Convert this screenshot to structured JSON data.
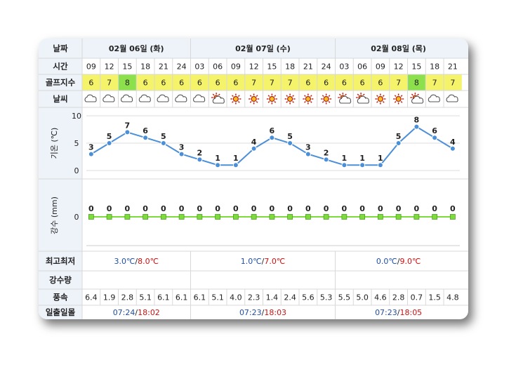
{
  "row_labels": {
    "date": "날짜",
    "time": "시간",
    "golf": "골프지수",
    "weather": "날씨",
    "temp_axis": "기온 (℃)",
    "rain_axis": "강수 (mm)",
    "minmax": "최고최저",
    "precip": "강수량",
    "wind": "풍속",
    "sun": "일출일몰"
  },
  "days": [
    {
      "label": "02월 06일 (화)",
      "min": "3.0℃",
      "max": "8.0℃",
      "sunrise": "07:24",
      "sunset": "18:02"
    },
    {
      "label": "02월 07일 (수)",
      "min": "1.0℃",
      "max": "7.0℃",
      "sunrise": "07:23",
      "sunset": "18:03"
    },
    {
      "label": "02월 08일 (목)",
      "min": "0.0℃",
      "max": "9.0℃",
      "sunrise": "07:23",
      "sunset": "18:05"
    }
  ],
  "separator": "/",
  "colors": {
    "header_bg": "#eef3fa",
    "golf_green": "#8ce04c",
    "golf_yellow": "#f4f36a",
    "line_blue": "#4a8fd8",
    "rain_green": "#7ddc3c",
    "grid": "#d8d8d8"
  },
  "chart_data": {
    "type": "line",
    "x": [
      "09",
      "12",
      "15",
      "18",
      "21",
      "24",
      "03",
      "06",
      "09",
      "12",
      "15",
      "18",
      "21",
      "24",
      "03",
      "06",
      "09",
      "12",
      "15",
      "18",
      "21"
    ],
    "golf_index": [
      6,
      7,
      8,
      6,
      6,
      6,
      6,
      6,
      6,
      7,
      7,
      7,
      6,
      6,
      6,
      6,
      6,
      7,
      8,
      7,
      7
    ],
    "weather_icons": [
      "cloud-icon",
      "cloud-icon",
      "cloud-icon",
      "cloud-icon",
      "cloud-icon",
      "cloud-icon",
      "cloud-icon",
      "sun-cloud-icon",
      "sun-icon",
      "sun-icon",
      "sun-icon",
      "sun-icon",
      "sun-icon",
      "sun-icon",
      "sun-cloud-icon",
      "sun-cloud-icon",
      "sun-icon",
      "sun-icon",
      "sun-cloud-icon",
      "cloud-icon",
      "cloud-icon"
    ],
    "temperature": [
      3,
      5,
      7,
      6,
      5,
      3,
      2,
      1,
      1,
      4,
      6,
      5,
      3,
      2,
      1,
      1,
      1,
      5,
      8,
      6,
      4
    ],
    "temp_ylim": [
      0,
      10
    ],
    "temp_ticks": [
      "0",
      "5",
      "10"
    ],
    "precipitation": [
      0,
      0,
      0,
      0,
      0,
      0,
      0,
      0,
      0,
      0,
      0,
      0,
      0,
      0,
      0,
      0,
      0,
      0,
      0,
      0,
      0
    ],
    "rain_ticks": [
      "0"
    ],
    "wind": [
      "6.4",
      "1.9",
      "2.8",
      "5.1",
      "6.1",
      "6.1",
      "6.1",
      "5.1",
      "4.0",
      "2.3",
      "1.4",
      "2.4",
      "5.6",
      "5.3",
      "5.5",
      "5.0",
      "4.6",
      "2.8",
      "0.7",
      "1.5",
      "4.8"
    ]
  }
}
